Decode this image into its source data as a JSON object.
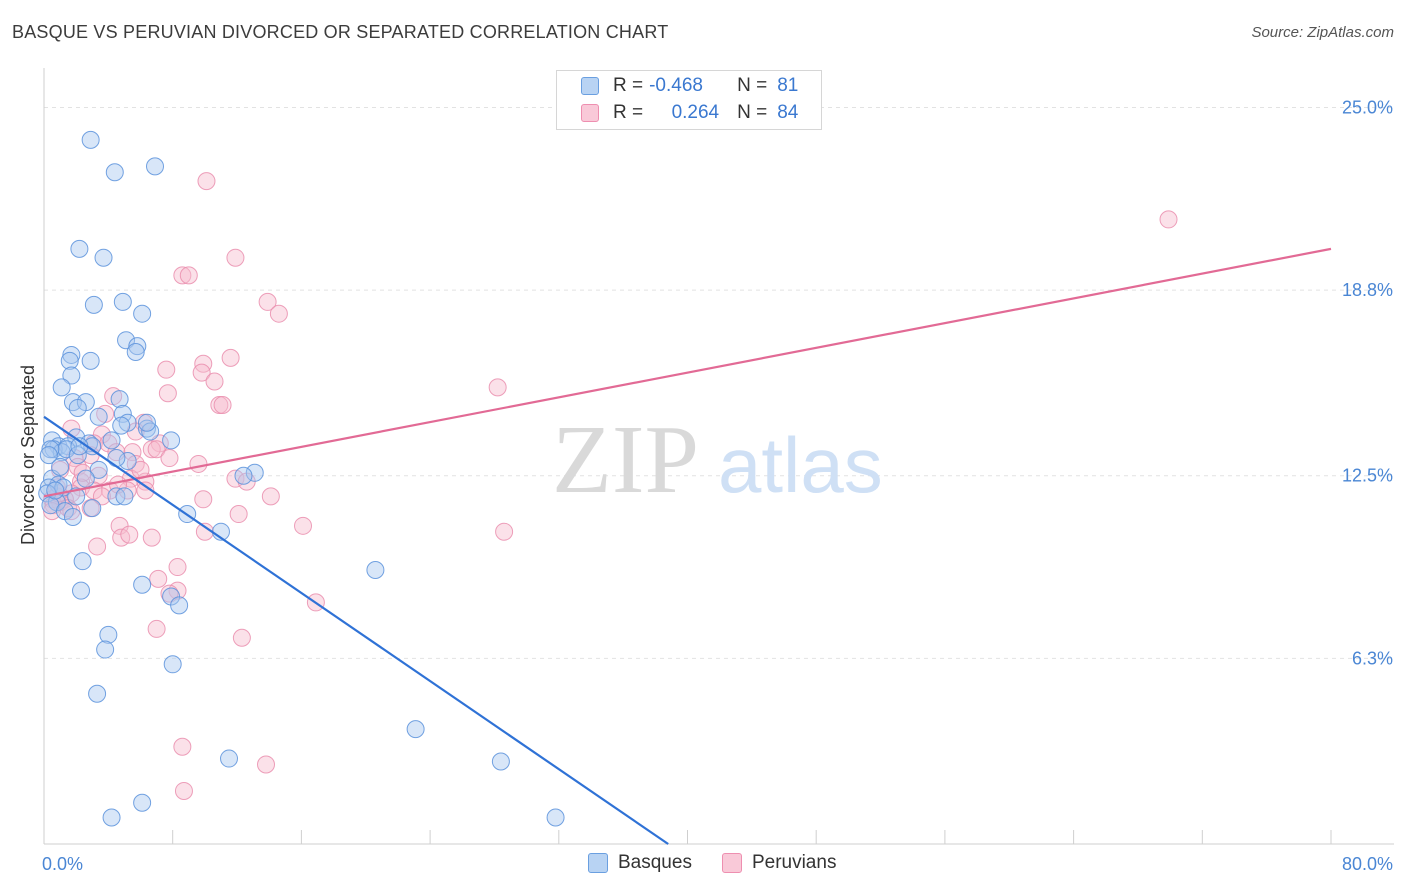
{
  "header": {
    "title": "BASQUE VS PERUVIAN DIVORCED OR SEPARATED CORRELATION CHART",
    "source": "Source: ZipAtlas.com"
  },
  "watermark": {
    "zip": "ZIP",
    "atlas": "atlas"
  },
  "legend": {
    "r_label": "R =",
    "n_label": "N =",
    "basque": {
      "r": "-0.468",
      "n": "81"
    },
    "peruvian": {
      "r": "0.264",
      "n": "84"
    }
  },
  "bottom_legend": {
    "basques": "Basques",
    "peruvians": "Peruvians"
  },
  "colors": {
    "blue_line": "#2f72d6",
    "blue_fill": "#a8c8f0",
    "blue_stroke": "#5b92dc",
    "pink_line": "#e26a95",
    "pink_fill": "#f6bccf",
    "pink_stroke": "#ea8eae",
    "axis_text": "#4a86d4"
  },
  "chart_data": {
    "type": "scatter",
    "title": "BASQUE VS PERUVIAN DIVORCED OR SEPARATED CORRELATION CHART",
    "xlabel": "",
    "ylabel": "Divorced or Separated",
    "xlim": [
      0,
      80
    ],
    "ylim": [
      0,
      26
    ],
    "x_tick_labels": [
      "0.0%",
      "80.0%"
    ],
    "y_ticks": [
      6.3,
      12.5,
      18.8,
      25.0
    ],
    "y_tick_labels": [
      "6.3%",
      "12.5%",
      "18.8%",
      "25.0%"
    ],
    "series": [
      {
        "name": "Basques",
        "r": -0.468,
        "n": 81,
        "trend": {
          "x": [
            0,
            38.8
          ],
          "y": [
            14.5,
            0
          ]
        },
        "points": [
          [
            2.9,
            23.9
          ],
          [
            4.4,
            22.8
          ],
          [
            6.9,
            23.0
          ],
          [
            2.2,
            20.2
          ],
          [
            3.7,
            19.9
          ],
          [
            3.1,
            18.3
          ],
          [
            4.9,
            18.4
          ],
          [
            6.1,
            18.0
          ],
          [
            5.1,
            17.1
          ],
          [
            5.8,
            16.9
          ],
          [
            5.7,
            16.7
          ],
          [
            1.7,
            16.6
          ],
          [
            2.9,
            16.4
          ],
          [
            1.6,
            16.4
          ],
          [
            1.7,
            15.9
          ],
          [
            1.1,
            15.5
          ],
          [
            1.8,
            15.0
          ],
          [
            2.6,
            15.0
          ],
          [
            4.7,
            15.1
          ],
          [
            2.1,
            14.8
          ],
          [
            3.4,
            14.5
          ],
          [
            4.9,
            14.6
          ],
          [
            5.2,
            14.3
          ],
          [
            4.8,
            14.2
          ],
          [
            6.4,
            14.1
          ],
          [
            6.6,
            14.0
          ],
          [
            2.0,
            13.8
          ],
          [
            4.2,
            13.7
          ],
          [
            7.9,
            13.7
          ],
          [
            0.5,
            13.7
          ],
          [
            0.9,
            13.5
          ],
          [
            1.5,
            13.5
          ],
          [
            2.8,
            13.6
          ],
          [
            3.0,
            13.5
          ],
          [
            0.6,
            13.4
          ],
          [
            1.1,
            13.3
          ],
          [
            1.4,
            13.4
          ],
          [
            0.4,
            13.4
          ],
          [
            2.1,
            13.2
          ],
          [
            0.3,
            13.2
          ],
          [
            5.2,
            13.0
          ],
          [
            3.4,
            12.7
          ],
          [
            13.1,
            12.6
          ],
          [
            12.4,
            12.5
          ],
          [
            0.5,
            12.4
          ],
          [
            2.6,
            12.4
          ],
          [
            0.9,
            12.2
          ],
          [
            0.3,
            12.1
          ],
          [
            1.2,
            12.1
          ],
          [
            0.2,
            11.9
          ],
          [
            2.0,
            11.8
          ],
          [
            4.5,
            11.8
          ],
          [
            5.0,
            11.8
          ],
          [
            0.8,
            11.6
          ],
          [
            0.4,
            11.5
          ],
          [
            1.3,
            11.3
          ],
          [
            1.8,
            11.1
          ],
          [
            8.9,
            11.2
          ],
          [
            11.0,
            10.6
          ],
          [
            2.4,
            9.6
          ],
          [
            20.6,
            9.3
          ],
          [
            6.1,
            8.8
          ],
          [
            2.3,
            8.6
          ],
          [
            7.9,
            8.4
          ],
          [
            8.4,
            8.1
          ],
          [
            4.0,
            7.1
          ],
          [
            3.8,
            6.6
          ],
          [
            8.0,
            6.1
          ],
          [
            3.3,
            5.1
          ],
          [
            23.1,
            3.9
          ],
          [
            11.5,
            2.9
          ],
          [
            28.4,
            2.8
          ],
          [
            6.1,
            1.4
          ],
          [
            4.2,
            0.9
          ],
          [
            31.8,
            0.9
          ],
          [
            6.4,
            14.3
          ],
          [
            2.2,
            13.5
          ],
          [
            1.0,
            12.8
          ],
          [
            4.5,
            13.1
          ],
          [
            0.7,
            12.0
          ],
          [
            3.0,
            11.4
          ]
        ]
      },
      {
        "name": "Peruvians",
        "r": 0.264,
        "n": 84,
        "trend": {
          "x": [
            0,
            80
          ],
          "y": [
            11.8,
            20.2
          ]
        },
        "points": [
          [
            10.1,
            22.5
          ],
          [
            69.9,
            21.2
          ],
          [
            11.9,
            19.9
          ],
          [
            8.6,
            19.3
          ],
          [
            9.0,
            19.3
          ],
          [
            13.9,
            18.4
          ],
          [
            14.6,
            18.0
          ],
          [
            11.6,
            16.5
          ],
          [
            9.9,
            16.3
          ],
          [
            7.6,
            16.1
          ],
          [
            9.8,
            16.0
          ],
          [
            10.6,
            15.7
          ],
          [
            28.2,
            15.5
          ],
          [
            7.7,
            15.3
          ],
          [
            4.3,
            15.2
          ],
          [
            10.9,
            14.9
          ],
          [
            11.1,
            14.9
          ],
          [
            3.8,
            14.6
          ],
          [
            6.2,
            14.3
          ],
          [
            1.7,
            14.1
          ],
          [
            5.7,
            14.0
          ],
          [
            3.6,
            13.9
          ],
          [
            7.2,
            13.6
          ],
          [
            3.1,
            13.6
          ],
          [
            4.0,
            13.6
          ],
          [
            6.7,
            13.4
          ],
          [
            7.0,
            13.4
          ],
          [
            4.5,
            13.3
          ],
          [
            5.5,
            13.3
          ],
          [
            2.9,
            13.2
          ],
          [
            1.9,
            13.1
          ],
          [
            7.8,
            13.1
          ],
          [
            5.7,
            12.9
          ],
          [
            2.1,
            12.8
          ],
          [
            9.6,
            12.9
          ],
          [
            1.0,
            12.7
          ],
          [
            3.4,
            12.5
          ],
          [
            2.3,
            12.3
          ],
          [
            5.4,
            12.4
          ],
          [
            11.9,
            12.4
          ],
          [
            12.6,
            12.3
          ],
          [
            6.3,
            12.3
          ],
          [
            2.3,
            12.1
          ],
          [
            0.8,
            12.1
          ],
          [
            3.1,
            12.0
          ],
          [
            4.1,
            12.0
          ],
          [
            5.2,
            12.0
          ],
          [
            6.3,
            12.0
          ],
          [
            1.7,
            11.9
          ],
          [
            0.8,
            11.8
          ],
          [
            3.6,
            11.8
          ],
          [
            0.5,
            11.7
          ],
          [
            1.3,
            11.7
          ],
          [
            14.1,
            11.8
          ],
          [
            9.9,
            11.7
          ],
          [
            1.0,
            11.6
          ],
          [
            0.6,
            11.5
          ],
          [
            1.5,
            11.4
          ],
          [
            2.9,
            11.4
          ],
          [
            1.7,
            11.3
          ],
          [
            0.5,
            11.3
          ],
          [
            12.1,
            11.2
          ],
          [
            4.7,
            10.8
          ],
          [
            28.6,
            10.6
          ],
          [
            10.0,
            10.6
          ],
          [
            4.8,
            10.4
          ],
          [
            5.3,
            10.5
          ],
          [
            6.7,
            10.4
          ],
          [
            3.3,
            10.1
          ],
          [
            16.1,
            10.8
          ],
          [
            8.3,
            9.4
          ],
          [
            7.1,
            9.0
          ],
          [
            8.3,
            8.6
          ],
          [
            7.8,
            8.5
          ],
          [
            16.9,
            8.2
          ],
          [
            7.0,
            7.3
          ],
          [
            12.3,
            7.0
          ],
          [
            8.6,
            3.3
          ],
          [
            13.8,
            2.7
          ],
          [
            8.7,
            1.8
          ],
          [
            2.4,
            12.6
          ],
          [
            4.6,
            12.2
          ],
          [
            0.9,
            11.9
          ],
          [
            6.0,
            12.7
          ]
        ]
      }
    ]
  }
}
